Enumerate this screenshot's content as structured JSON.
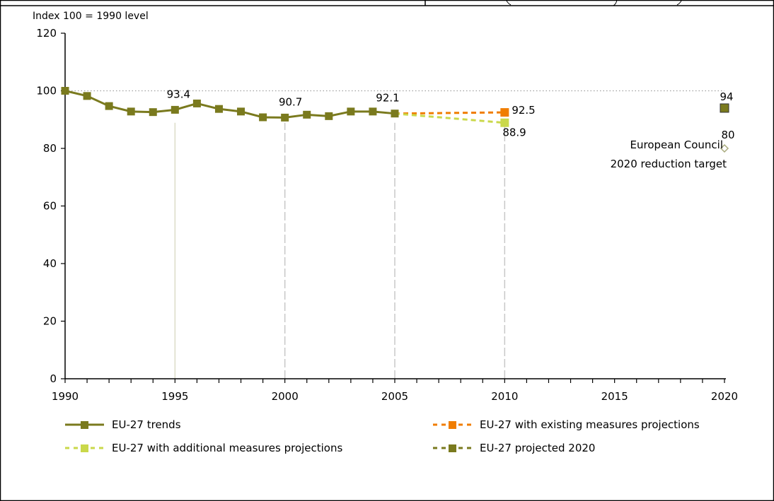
{
  "chart_data": {
    "type": "line",
    "ylabel": "Index 100 = 1990 level",
    "xlim": [
      1990,
      2020
    ],
    "ylim": [
      0,
      120
    ],
    "x_ticks": [
      1990,
      1995,
      2000,
      2005,
      2010,
      2015,
      2020
    ],
    "y_ticks": [
      0,
      20,
      40,
      60,
      80,
      100,
      120
    ],
    "reference_line": 100,
    "series": [
      {
        "name": "EU-27 trends",
        "color": "#7a7a1e",
        "style": "solid",
        "x": [
          1990,
          1991,
          1992,
          1993,
          1994,
          1995,
          1996,
          1997,
          1998,
          1999,
          2000,
          2001,
          2002,
          2003,
          2004,
          2005
        ],
        "y": [
          100,
          98.2,
          94.7,
          92.8,
          92.6,
          93.4,
          95.6,
          93.7,
          92.8,
          90.8,
          90.7,
          91.7,
          91.2,
          92.8,
          92.8,
          92.1
        ]
      },
      {
        "name": "EU-27 with existing measures projections",
        "color": "#f07d00",
        "style": "dashed",
        "x": [
          2005,
          2010
        ],
        "y": [
          92.1,
          92.5
        ]
      },
      {
        "name": "EU-27 with additional measures projections",
        "color": "#cad84a",
        "style": "dashed",
        "x": [
          2005,
          2010
        ],
        "y": [
          92.1,
          88.9
        ]
      },
      {
        "name": "EU-27 projected 2020",
        "color": "#7a7a1e",
        "style": "dashed",
        "x": [
          2020
        ],
        "y": [
          94
        ]
      }
    ],
    "target": {
      "x": 2020,
      "y": 80,
      "color": "#a8aa7c",
      "label_lines": [
        "European Council",
        "2020 reduction target"
      ]
    },
    "annotations": [
      {
        "x": 1995,
        "y": 93.4,
        "text": "93.4"
      },
      {
        "x": 2000,
        "y": 90.7,
        "text": "90.7"
      },
      {
        "x": 2005,
        "y": 92.1,
        "text": "92.1"
      },
      {
        "x": 2010,
        "y": 92.5,
        "text": "92.5"
      },
      {
        "x": 2010,
        "y": 88.9,
        "text": "88.9"
      },
      {
        "x": 2020,
        "y": 94,
        "text": "94"
      },
      {
        "x": 2020,
        "y": 80,
        "text": "80"
      }
    ],
    "drop_lines": [
      {
        "x": 1995,
        "style": "solid"
      },
      {
        "x": 2000,
        "style": "dashed"
      },
      {
        "x": 2005,
        "style": "dashed"
      },
      {
        "x": 2010,
        "style": "dashed"
      }
    ],
    "legend": {
      "placement": "bottom",
      "entries": [
        {
          "label": "EU-27 trends",
          "color": "#7a7a1e",
          "style": "solid-marker"
        },
        {
          "label": "EU-27 with existing measures projections",
          "color": "#f07d00",
          "style": "dashed-marker"
        },
        {
          "label": "EU-27 with additional measures projections",
          "color": "#cad84a",
          "style": "dashed-marker"
        },
        {
          "label": "EU-27 projected 2020",
          "color": "#7a7a1e",
          "style": "dashed-marker"
        }
      ]
    }
  }
}
